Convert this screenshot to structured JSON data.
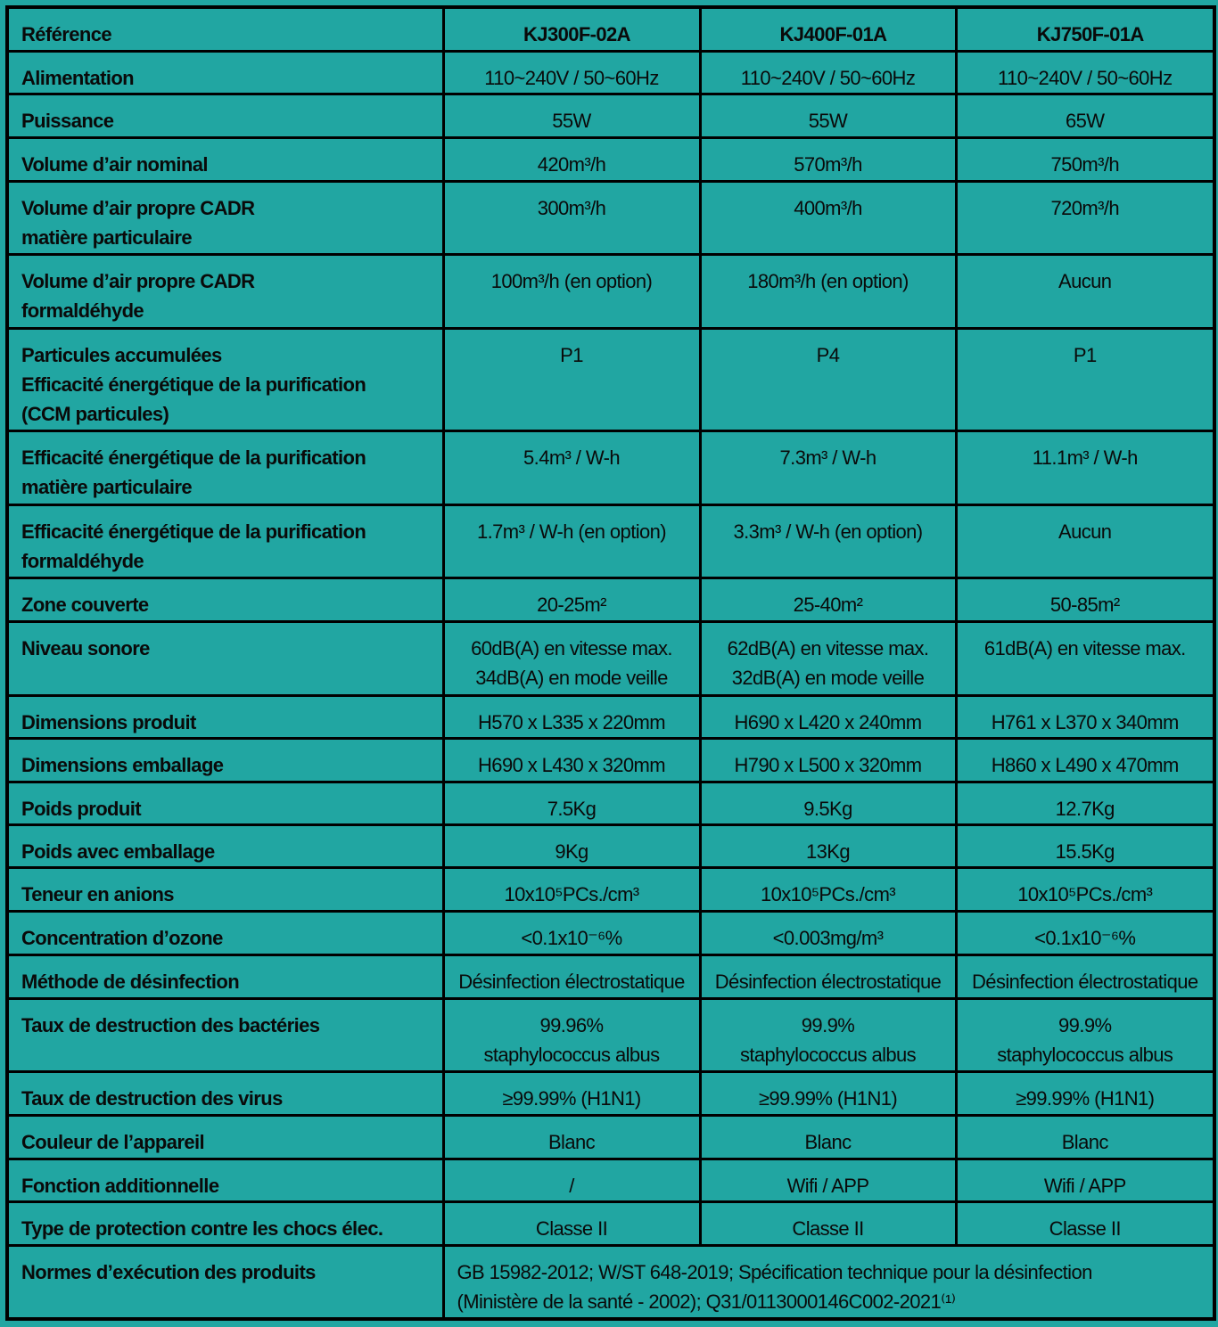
{
  "header": {
    "label": "Référence",
    "models": [
      "KJ300F-02A",
      "KJ400F-01A",
      "KJ750F-01A"
    ]
  },
  "rows": [
    {
      "label": "Alimentation",
      "values": [
        "110~240V / 50~60Hz",
        "110~240V / 50~60Hz",
        "110~240V / 50~60Hz"
      ]
    },
    {
      "label": "Puissance",
      "values": [
        "55W",
        "55W",
        "65W"
      ]
    },
    {
      "label": "Volume d’air nominal",
      "values": [
        "420m³/h",
        "570m³/h",
        "750m³/h"
      ]
    },
    {
      "label": "Volume d’air propre CADR\nmatière particulaire",
      "values": [
        "300m³/h",
        "400m³/h",
        "720m³/h"
      ]
    },
    {
      "label": "Volume d’air propre CADR\nformaldéhyde",
      "values": [
        "100m³/h (en option)",
        "180m³/h (en option)",
        "Aucun"
      ]
    },
    {
      "label": "Particules accumulées\nEfficacité énergétique de la purification\n(CCM particules)",
      "values": [
        "P1",
        "P4",
        "P1"
      ]
    },
    {
      "label": "Efficacité énergétique de la purification\nmatière particulaire",
      "values": [
        "5.4m³ / W-h",
        "7.3m³ / W-h",
        "11.1m³ / W-h"
      ]
    },
    {
      "label": "Efficacité énergétique de la purification\nformaldéhyde",
      "values": [
        "1.7m³ / W-h (en option)",
        "3.3m³ / W-h (en option)",
        "Aucun"
      ]
    },
    {
      "label": "Zone couverte",
      "values": [
        "20-25m²",
        "25-40m²",
        "50-85m²"
      ]
    },
    {
      "label": "Niveau sonore",
      "values": [
        "60dB(A) en vitesse max.\n34dB(A) en mode veille",
        "62dB(A) en vitesse max.\n32dB(A) en mode veille",
        "61dB(A) en vitesse max."
      ]
    },
    {
      "label": "Dimensions produit",
      "values": [
        "H570 x L335 x 220mm",
        "H690 x L420 x 240mm",
        "H761 x L370 x 340mm"
      ]
    },
    {
      "label": "Dimensions emballage",
      "values": [
        "H690 x L430 x 320mm",
        "H790 x L500 x 320mm",
        "H860 x L490 x 470mm"
      ]
    },
    {
      "label": "Poids produit",
      "values": [
        "7.5Kg",
        "9.5Kg",
        "12.7Kg"
      ]
    },
    {
      "label": "Poids avec emballage",
      "values": [
        "9Kg",
        "13Kg",
        "15.5Kg"
      ]
    },
    {
      "label": "Teneur en anions",
      "values": [
        "10x10⁵PCs./cm³",
        "10x10⁵PCs./cm³",
        "10x10⁵PCs./cm³"
      ]
    },
    {
      "label": "Concentration d’ozone",
      "values": [
        "<0.1x10⁻⁶%",
        "<0.003mg/m³",
        "<0.1x10⁻⁶%"
      ]
    },
    {
      "label": "Méthode de désinfection",
      "values": [
        "Désinfection électrostatique",
        "Désinfection électrostatique",
        "Désinfection électrostatique"
      ]
    },
    {
      "label": "Taux de destruction des bactéries",
      "values": [
        "99.96%\nstaphylococcus albus",
        "99.9%\nstaphylococcus albus",
        "99.9%\nstaphylococcus albus"
      ]
    },
    {
      "label": "Taux de destruction des virus",
      "values": [
        "≥99.99% (H1N1)",
        "≥99.99% (H1N1)",
        "≥99.99% (H1N1)"
      ]
    },
    {
      "label": "Couleur de l’appareil",
      "values": [
        "Blanc",
        "Blanc",
        "Blanc"
      ]
    },
    {
      "label": "Fonction additionnelle",
      "values": [
        "/",
        "Wifi / APP",
        "Wifi / APP"
      ]
    },
    {
      "label": "Type de protection contre les chocs élec.",
      "values": [
        "Classe II",
        "Classe II",
        "Classe II"
      ]
    }
  ],
  "standards": {
    "label": "Normes d’exécution des produits",
    "value": "GB 15982-2012; W/ST 648-2019; Spécification technique pour la désinfection\n(Ministère de la santé - 2002); Q31/0113000146C002-2021⁽¹⁾"
  },
  "colors": {
    "background": "#21a6a2",
    "border": "#000000"
  }
}
